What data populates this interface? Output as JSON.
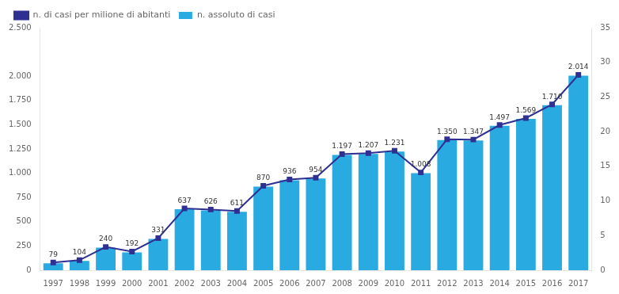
{
  "chart_data": {
    "type": "bar",
    "categories": [
      "1997",
      "1998",
      "1999",
      "2000",
      "2001",
      "2002",
      "2003",
      "2004",
      "2005",
      "2006",
      "2007",
      "2008",
      "2009",
      "2010",
      "2011",
      "2012",
      "2013",
      "2014",
      "2015",
      "2016",
      "2017"
    ],
    "series": [
      {
        "name": "n. assoluto di casi",
        "type": "bar",
        "color": "#29ABE2",
        "values": [
          79,
          104,
          240,
          192,
          331,
          637,
          626,
          611,
          870,
          936,
          954,
          1197,
          1207,
          1231,
          1008,
          1350,
          1347,
          1497,
          1569,
          1710,
          2014
        ],
        "value_labels": [
          "79",
          "104",
          "240",
          "192",
          "331",
          "637",
          "626",
          "611",
          "870",
          "936",
          "954",
          "1.197",
          "1.207",
          "1.231",
          "1.008",
          "1.350",
          "1.347",
          "1.497",
          "1.569",
          "1.710",
          "2.014"
        ],
        "data_labels": true
      },
      {
        "name": "n. di casi per milione di abitanti",
        "type": "line",
        "color": "#2E3192",
        "marker": "square",
        "values": [
          79,
          104,
          240,
          192,
          331,
          637,
          626,
          611,
          870,
          936,
          954,
          1197,
          1207,
          1231,
          1008,
          1350,
          1347,
          1497,
          1569,
          1710,
          2014
        ]
      }
    ],
    "ylim": [
      0,
      2500
    ],
    "yticks": [
      0,
      250,
      500,
      750,
      {
        "value": 1000,
        "label": "1.000"
      },
      {
        "value": 1250,
        "label": "1.250"
      },
      {
        "value": 1500,
        "label": "1.500"
      },
      {
        "value": 1750,
        "label": "1.750"
      },
      {
        "value": 2000,
        "label": "2.000"
      },
      {
        "value": 2500,
        "label": "2.500"
      }
    ],
    "y2lim": [
      0,
      35
    ],
    "y2ticks": [
      0,
      5,
      10,
      15,
      20,
      25,
      30,
      35
    ],
    "grid": false,
    "legend": "upper left"
  }
}
